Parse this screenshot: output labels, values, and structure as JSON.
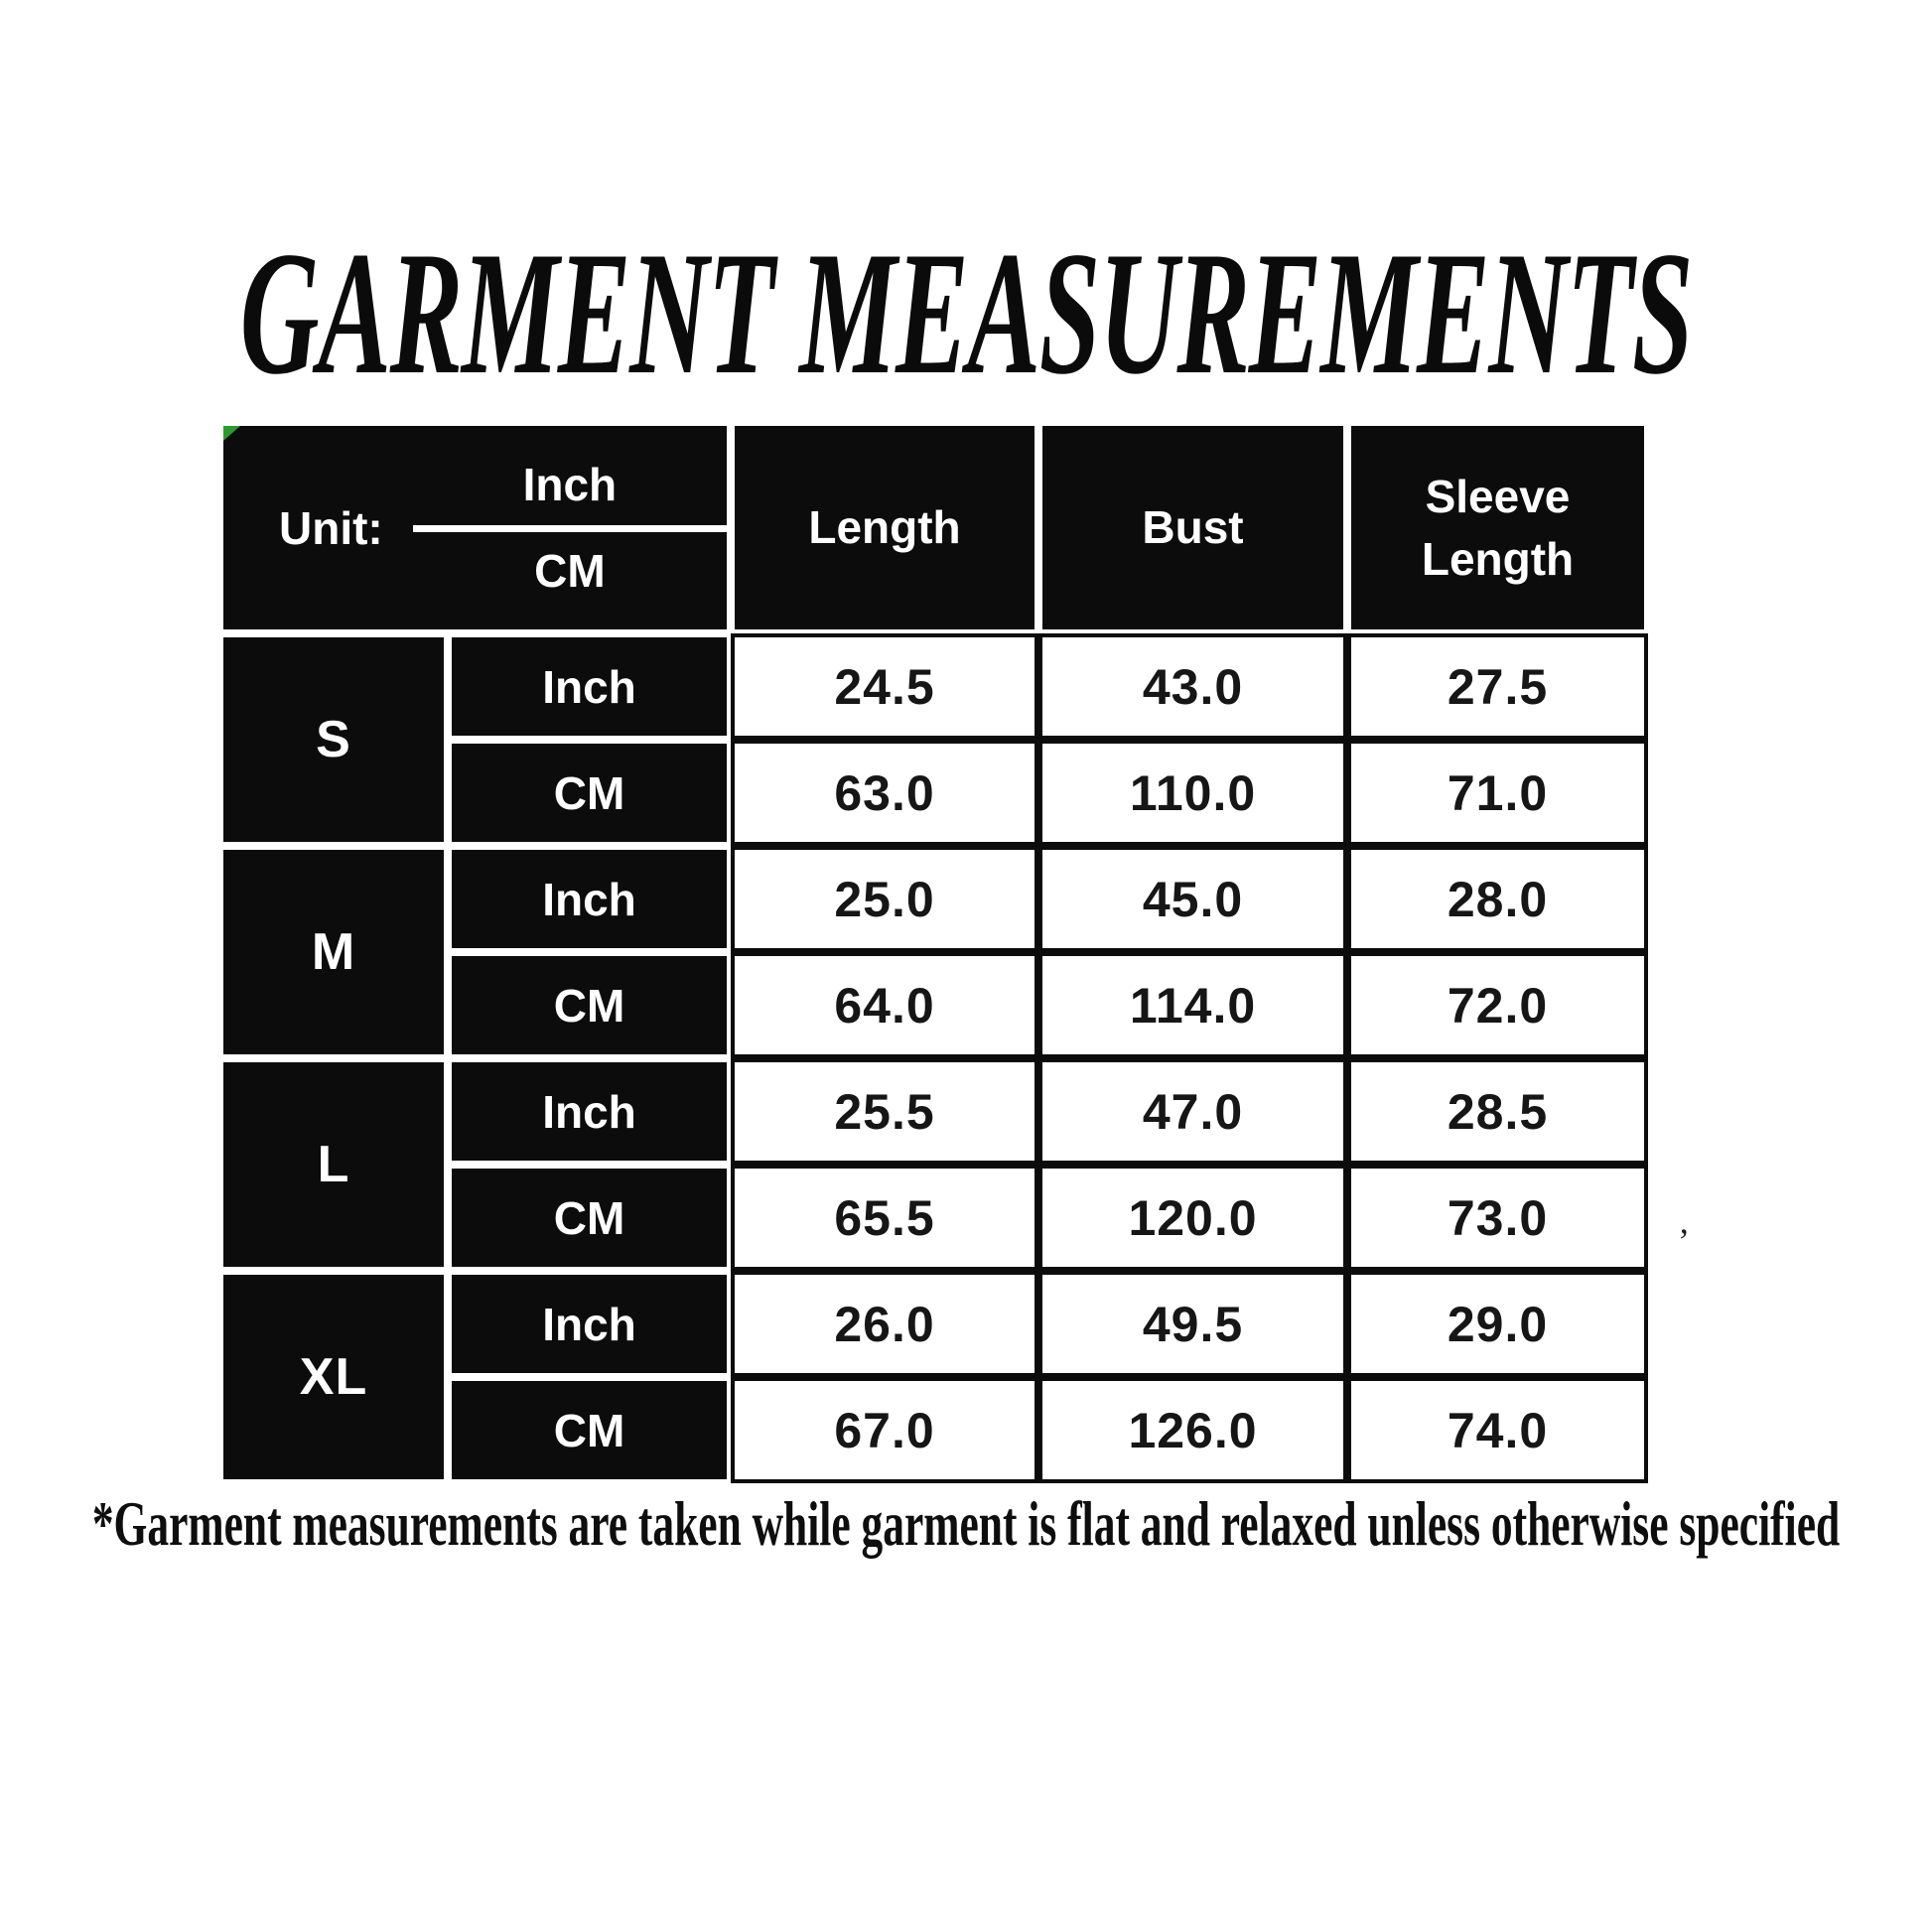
{
  "title": "GARMENT MEASUREMENTS",
  "footnote": "*Garment measurements are taken while garment is flat and relaxed unless otherwise specified",
  "colors": {
    "cell_fill": "#0c0c0c",
    "marker_green": "#2b9c2b",
    "page_bg": "#ffffff",
    "value_text": "#161616"
  },
  "table": {
    "unit_label": "Unit:",
    "unit_top": "Inch",
    "unit_bottom": "CM",
    "headers": {
      "length": "Length",
      "bust": "Bust",
      "sleeve": "Sleeve Length"
    },
    "rows": [
      {
        "size": "S",
        "inch_label": "Inch",
        "cm_label": "CM",
        "inch": [
          "24.5",
          "43.0",
          "27.5"
        ],
        "cm": [
          "63.0",
          "110.0",
          "71.0"
        ]
      },
      {
        "size": "M",
        "inch_label": "Inch",
        "cm_label": "CM",
        "inch": [
          "25.0",
          "45.0",
          "28.0"
        ],
        "cm": [
          "64.0",
          "114.0",
          "72.0"
        ]
      },
      {
        "size": "L",
        "inch_label": "Inch",
        "cm_label": "CM",
        "inch": [
          "25.5",
          "47.0",
          "28.5"
        ],
        "cm": [
          "65.5",
          "120.0",
          "73.0"
        ]
      },
      {
        "size": "XL",
        "inch_label": "Inch",
        "cm_label": "CM",
        "inch": [
          "26.0",
          "49.5",
          "29.0"
        ],
        "cm": [
          "67.0",
          "126.0",
          "74.0"
        ]
      }
    ]
  },
  "chart_data": {
    "type": "table",
    "title": "GARMENT MEASUREMENTS",
    "columns": [
      "Length",
      "Bust",
      "Sleeve Length"
    ],
    "unit_options": [
      "Inch",
      "CM"
    ],
    "rows": [
      {
        "size": "S",
        "unit": "Inch",
        "length": 24.5,
        "bust": 43.0,
        "sleeve_length": 27.5
      },
      {
        "size": "S",
        "unit": "CM",
        "length": 63.0,
        "bust": 110.0,
        "sleeve_length": 71.0
      },
      {
        "size": "M",
        "unit": "Inch",
        "length": 25.0,
        "bust": 45.0,
        "sleeve_length": 28.0
      },
      {
        "size": "M",
        "unit": "CM",
        "length": 64.0,
        "bust": 114.0,
        "sleeve_length": 72.0
      },
      {
        "size": "L",
        "unit": "Inch",
        "length": 25.5,
        "bust": 47.0,
        "sleeve_length": 28.5
      },
      {
        "size": "L",
        "unit": "CM",
        "length": 65.5,
        "bust": 120.0,
        "sleeve_length": 73.0
      },
      {
        "size": "XL",
        "unit": "Inch",
        "length": 26.0,
        "bust": 49.5,
        "sleeve_length": 29.0
      },
      {
        "size": "XL",
        "unit": "CM",
        "length": 67.0,
        "bust": 126.0,
        "sleeve_length": 74.0
      }
    ],
    "footnote": "*Garment measurements are taken while garment is flat and relaxed unless otherwise specified"
  }
}
